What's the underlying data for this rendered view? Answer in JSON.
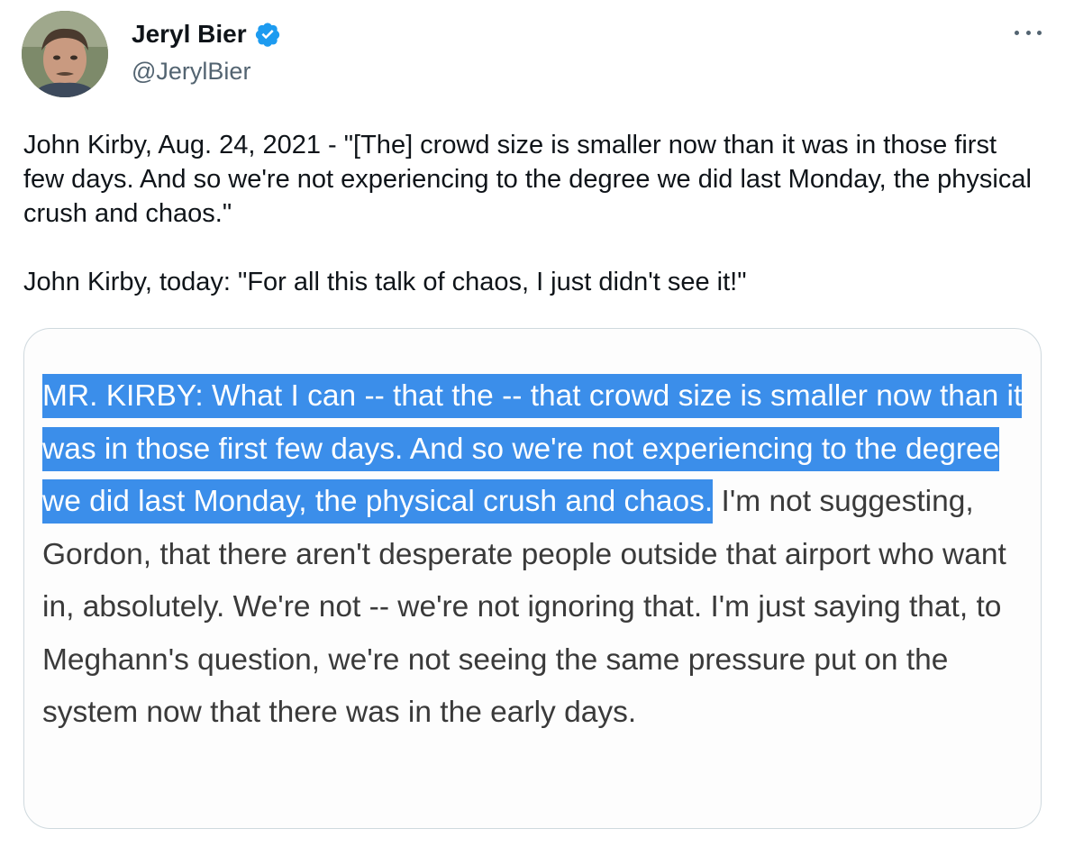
{
  "author": {
    "display_name": "Jeryl Bier",
    "handle": "@JerylBier",
    "verified": true,
    "verified_color": "#1d9bf0"
  },
  "tweet": {
    "paragraphs": [
      "John Kirby, Aug. 24, 2021 - \"[The] crowd size is smaller now than it was in those first few days. And so we're not experiencing to the degree we did last Monday, the physical crush and chaos.\"",
      "John Kirby, today: \"For all this talk of chaos, I just didn't see it!\""
    ]
  },
  "media": {
    "highlighted_text": "MR. KIRBY: What I can -- that the -- that crowd size is smaller now than it was in those first few days. And so we're not experiencing to the degree we did last Monday, the physical crush and chaos.",
    "rest_text": " I'm not suggesting, Gordon, that there aren't desperate people outside that airport who want in, absolutely. We're not -- we're not ignoring that. I'm just saying that, to Meghann's question, we're not seeing the same pressure put on the system now that there was in the early days.",
    "highlight_color": "#3b8eea"
  },
  "icons": {
    "verified": "verified-badge-icon",
    "more": "more-options-icon"
  }
}
